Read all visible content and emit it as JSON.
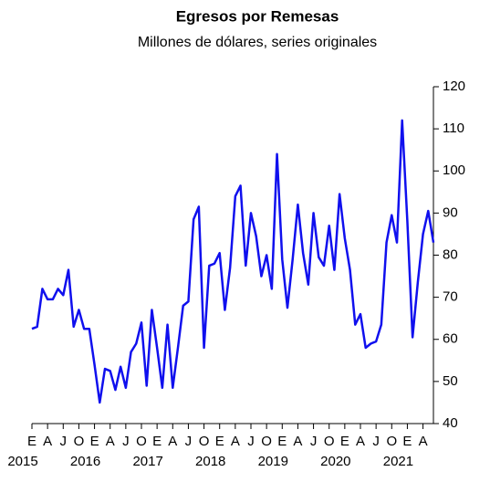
{
  "chart_data": {
    "type": "line",
    "title": "Egresos por Remesas",
    "subtitle": "Millones de dólares, series originales",
    "categories": [
      "E",
      null,
      null,
      "A",
      null,
      null,
      "J",
      null,
      null,
      "O",
      null,
      null,
      "E",
      null,
      null,
      "A",
      null,
      null,
      "J",
      null,
      null,
      "O",
      null,
      null,
      "E",
      null,
      null,
      "A",
      null,
      null,
      "J",
      null,
      null,
      "O",
      null,
      null,
      "E",
      null,
      null,
      "A",
      null,
      null,
      "J",
      null,
      null,
      "O",
      null,
      null,
      "E",
      null,
      null,
      "A",
      null,
      null,
      "J",
      null,
      null,
      "O",
      null,
      null,
      "E",
      null,
      null,
      "A",
      null,
      null,
      "J",
      null,
      null,
      "O",
      null,
      null,
      "E",
      null,
      null,
      "A",
      null,
      null
    ],
    "years": [
      "2015",
      "2016",
      "2017",
      "2018",
      "2019",
      "2020",
      "2021"
    ],
    "series": [
      {
        "color": "#1010ee",
        "values": [
          62.5,
          63,
          72,
          69.5,
          69.5,
          72,
          70.5,
          76.5,
          63,
          67,
          62.5,
          62.5,
          54,
          45,
          53,
          52.5,
          48,
          53.5,
          48.5,
          57,
          59,
          64,
          49,
          67,
          58,
          48.5,
          63.5,
          48.5,
          58,
          68,
          69,
          88.5,
          91.5,
          58,
          77.5,
          78,
          80.5,
          67,
          77,
          94,
          96.5,
          77.5,
          90,
          84.5,
          75,
          80,
          72,
          104,
          79,
          67.5,
          79,
          92,
          80.5,
          73,
          90,
          79.5,
          77.5,
          87,
          76.5,
          94.5,
          84,
          76.5,
          63.5,
          66,
          58,
          59,
          59.5,
          63.5,
          83,
          89.5,
          83,
          112,
          88,
          60.5,
          73.5,
          85,
          90.5,
          83
        ]
      }
    ],
    "ylim": [
      40,
      120
    ],
    "yticks": [
      40,
      50,
      60,
      70,
      80,
      90,
      100,
      110,
      120
    ]
  }
}
